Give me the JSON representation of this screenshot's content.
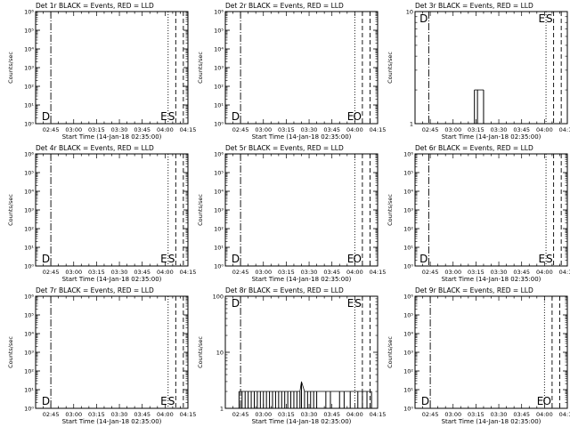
{
  "chart_data": [
    {
      "type": "line",
      "title": "Det 1r BLACK = Events, RED = LLD",
      "xlabel": "Start Time (14-Jan-18 02:35:00)",
      "ylabel": "Counts/sec",
      "scale_y": "log",
      "ylim": [
        1,
        1000000
      ],
      "y_ticks": [
        {
          "v": 1,
          "label": "10⁰"
        },
        {
          "v": 10,
          "label": "10¹"
        },
        {
          "v": 100,
          "label": "10²"
        },
        {
          "v": 1000,
          "label": "10³"
        },
        {
          "v": 10000,
          "label": "10⁴"
        },
        {
          "v": 100000,
          "label": "10⁵"
        },
        {
          "v": 1000000,
          "label": "10⁶"
        }
      ],
      "xlim": [
        "02:35",
        "04:15"
      ],
      "x_ticks": [
        "02:45",
        "03:00",
        "03:15",
        "03:30",
        "03:45",
        "04:00",
        "04:15"
      ],
      "markers": [
        {
          "time": "02:45",
          "style": "dashdot",
          "label": "D"
        },
        {
          "time": "04:02",
          "style": "dotted",
          "label": "E"
        },
        {
          "time": "04:07",
          "style": "dashed",
          "label": "S"
        },
        {
          "time": "04:12",
          "style": "dashed",
          "label": ""
        }
      ],
      "series": [
        {
          "values": []
        }
      ]
    },
    {
      "type": "line",
      "title": "Det 2r BLACK = Events, RED = LLD",
      "xlabel": "Start Time (14-Jan-18 02:35:00)",
      "ylabel": "Counts/sec",
      "scale_y": "log",
      "ylim": [
        1,
        1000000
      ],
      "y_ticks": [
        {
          "v": 1,
          "label": "10⁰"
        },
        {
          "v": 10,
          "label": "10¹"
        },
        {
          "v": 100,
          "label": "10²"
        },
        {
          "v": 1000,
          "label": "10³"
        },
        {
          "v": 10000,
          "label": "10⁴"
        },
        {
          "v": 100000,
          "label": "10⁵"
        },
        {
          "v": 1000000,
          "label": "10⁶"
        }
      ],
      "xlim": [
        "02:35",
        "04:15"
      ],
      "x_ticks": [
        "02:45",
        "03:00",
        "03:15",
        "03:30",
        "03:45",
        "04:00",
        "04:15"
      ],
      "markers": [
        {
          "time": "02:45",
          "style": "dashdot",
          "label": "D"
        },
        {
          "time": "04:00",
          "style": "dotted",
          "label": "E"
        },
        {
          "time": "04:05",
          "style": "dashed",
          "label": "O"
        },
        {
          "time": "04:10",
          "style": "dashed",
          "label": ""
        }
      ],
      "series": [
        {
          "values": []
        }
      ]
    },
    {
      "type": "line",
      "title": "Det 3r BLACK = Events, RED = LLD",
      "xlabel": "Start Time (14-Jan-18 02:35:00)",
      "ylabel": "Counts/sec",
      "scale_y": "log",
      "ylim": [
        1,
        10
      ],
      "y_ticks": [
        {
          "v": 1,
          "label": "1"
        },
        {
          "v": 10,
          "label": "10"
        }
      ],
      "xlim": [
        "02:35",
        "04:15"
      ],
      "x_ticks": [
        "02:45",
        "03:00",
        "03:15",
        "03:30",
        "03:45",
        "04:00",
        "04:15"
      ],
      "markers": [
        {
          "time": "02:44",
          "style": "dashdot",
          "label": "D"
        },
        {
          "time": "04:01",
          "style": "dotted",
          "label": "E"
        },
        {
          "time": "04:06",
          "style": "dashed",
          "label": "S"
        },
        {
          "time": "04:11",
          "style": "dashed",
          "label": ""
        }
      ],
      "series": [
        {
          "values": [
            {
              "t": "03:14",
              "y": 2
            },
            {
              "t": "03:16",
              "y": 2
            },
            {
              "t": "03:20",
              "y": 2
            }
          ]
        }
      ]
    },
    {
      "type": "line",
      "title": "Det 4r BLACK = Events, RED = LLD",
      "xlabel": "Start Time (14-Jan-18 02:35:00)",
      "ylabel": "Counts/sec",
      "scale_y": "log",
      "ylim": [
        1,
        1000000
      ],
      "y_ticks": [
        {
          "v": 1,
          "label": "10⁰"
        },
        {
          "v": 10,
          "label": "10¹"
        },
        {
          "v": 100,
          "label": "10²"
        },
        {
          "v": 1000,
          "label": "10³"
        },
        {
          "v": 10000,
          "label": "10⁴"
        },
        {
          "v": 100000,
          "label": "10⁵"
        },
        {
          "v": 1000000,
          "label": "10⁶"
        }
      ],
      "xlim": [
        "02:35",
        "04:15"
      ],
      "x_ticks": [
        "02:45",
        "03:00",
        "03:15",
        "03:30",
        "03:45",
        "04:00",
        "04:15"
      ],
      "markers": [
        {
          "time": "02:45",
          "style": "dashdot",
          "label": "D"
        },
        {
          "time": "04:02",
          "style": "dotted",
          "label": "E"
        },
        {
          "time": "04:07",
          "style": "dashed",
          "label": "S"
        },
        {
          "time": "04:12",
          "style": "dashed",
          "label": ""
        }
      ],
      "series": [
        {
          "values": []
        }
      ]
    },
    {
      "type": "line",
      "title": "Det 5r BLACK = Events, RED = LLD",
      "xlabel": "Start Time (14-Jan-18 02:35:00)",
      "ylabel": "Counts/sec",
      "scale_y": "log",
      "ylim": [
        1,
        1000000
      ],
      "y_ticks": [
        {
          "v": 1,
          "label": "10⁰"
        },
        {
          "v": 10,
          "label": "10¹"
        },
        {
          "v": 100,
          "label": "10²"
        },
        {
          "v": 1000,
          "label": "10³"
        },
        {
          "v": 10000,
          "label": "10⁴"
        },
        {
          "v": 100000,
          "label": "10⁵"
        },
        {
          "v": 1000000,
          "label": "10⁶"
        }
      ],
      "xlim": [
        "02:35",
        "04:15"
      ],
      "x_ticks": [
        "02:45",
        "03:00",
        "03:15",
        "03:30",
        "03:45",
        "04:00",
        "04:15"
      ],
      "markers": [
        {
          "time": "02:45",
          "style": "dashdot",
          "label": "D"
        },
        {
          "time": "04:00",
          "style": "dotted",
          "label": "E"
        },
        {
          "time": "04:05",
          "style": "dashed",
          "label": "O"
        },
        {
          "time": "04:10",
          "style": "dashed",
          "label": ""
        }
      ],
      "series": [
        {
          "values": []
        }
      ]
    },
    {
      "type": "line",
      "title": "Det 6r BLACK = Events, RED = LLD",
      "xlabel": "Start Time (14-Jan-18 02:35:00)",
      "ylabel": "Counts/sec",
      "scale_y": "log",
      "ylim": [
        1,
        1000000
      ],
      "y_ticks": [
        {
          "v": 1,
          "label": "10⁰"
        },
        {
          "v": 10,
          "label": "10¹"
        },
        {
          "v": 100,
          "label": "10²"
        },
        {
          "v": 1000,
          "label": "10³"
        },
        {
          "v": 10000,
          "label": "10⁴"
        },
        {
          "v": 100000,
          "label": "10⁵"
        },
        {
          "v": 1000000,
          "label": "10⁶"
        }
      ],
      "xlim": [
        "02:35",
        "04:15"
      ],
      "x_ticks": [
        "02:45",
        "03:00",
        "03:15",
        "03:30",
        "03:45",
        "04:00",
        "04:15"
      ],
      "markers": [
        {
          "time": "02:44",
          "style": "dashdot",
          "label": "D"
        },
        {
          "time": "04:01",
          "style": "dotted",
          "label": "E"
        },
        {
          "time": "04:06",
          "style": "dashed",
          "label": "S"
        },
        {
          "time": "04:11",
          "style": "dashed",
          "label": ""
        }
      ],
      "series": [
        {
          "values": []
        }
      ]
    },
    {
      "type": "line",
      "title": "Det 7r BLACK = Events, RED = LLD",
      "xlabel": "Start Time (14-Jan-18 02:35:00)",
      "ylabel": "Counts/sec",
      "scale_y": "log",
      "ylim": [
        1,
        1000000
      ],
      "y_ticks": [
        {
          "v": 1,
          "label": "10⁰"
        },
        {
          "v": 10,
          "label": "10¹"
        },
        {
          "v": 100,
          "label": "10²"
        },
        {
          "v": 1000,
          "label": "10³"
        },
        {
          "v": 10000,
          "label": "10⁴"
        },
        {
          "v": 100000,
          "label": "10⁵"
        },
        {
          "v": 1000000,
          "label": "10⁶"
        }
      ],
      "xlim": [
        "02:35",
        "04:15"
      ],
      "x_ticks": [
        "02:45",
        "03:00",
        "03:15",
        "03:30",
        "03:45",
        "04:00",
        "04:15"
      ],
      "markers": [
        {
          "time": "02:45",
          "style": "dashdot",
          "label": "D"
        },
        {
          "time": "04:02",
          "style": "dotted",
          "label": "E"
        },
        {
          "time": "04:07",
          "style": "dashed",
          "label": "S"
        },
        {
          "time": "04:12",
          "style": "dashed",
          "label": ""
        }
      ],
      "series": [
        {
          "values": []
        }
      ]
    },
    {
      "type": "line",
      "title": "Det 8r BLACK = Events, RED = LLD",
      "xlabel": "Start Time (14-Jan-18 02:35:00)",
      "ylabel": "Counts/sec",
      "scale_y": "log",
      "ylim": [
        1,
        100
      ],
      "y_ticks": [
        {
          "v": 1,
          "label": "1"
        },
        {
          "v": 10,
          "label": "10"
        },
        {
          "v": 100,
          "label": "100"
        }
      ],
      "xlim": [
        "02:35",
        "04:15"
      ],
      "x_ticks": [
        "02:45",
        "03:00",
        "03:15",
        "03:30",
        "03:45",
        "04:00",
        "04:15"
      ],
      "markers": [
        {
          "time": "02:45",
          "style": "dashdot",
          "label": "D"
        },
        {
          "time": "04:00",
          "style": "dotted",
          "label": "E"
        },
        {
          "time": "04:05",
          "style": "dashed",
          "label": "S"
        },
        {
          "time": "04:10",
          "style": "dashed",
          "label": ""
        }
      ],
      "series": [
        {
          "values": [
            {
              "t": "02:44",
              "y": 2
            },
            {
              "t": "02:46",
              "y": 2
            },
            {
              "t": "02:48",
              "y": 2
            },
            {
              "t": "02:50",
              "y": 2
            },
            {
              "t": "02:52",
              "y": 2
            },
            {
              "t": "02:54",
              "y": 2
            },
            {
              "t": "02:56",
              "y": 2
            },
            {
              "t": "02:58",
              "y": 2
            },
            {
              "t": "03:00",
              "y": 2
            },
            {
              "t": "03:02",
              "y": 2
            },
            {
              "t": "03:04",
              "y": 2
            },
            {
              "t": "03:06",
              "y": 2
            },
            {
              "t": "03:08",
              "y": 2
            },
            {
              "t": "03:10",
              "y": 2
            },
            {
              "t": "03:12",
              "y": 2
            },
            {
              "t": "03:14",
              "y": 2
            },
            {
              "t": "03:16",
              "y": 2
            },
            {
              "t": "03:18",
              "y": 2
            },
            {
              "t": "03:20",
              "y": 2
            },
            {
              "t": "03:22",
              "y": 2
            },
            {
              "t": "03:24",
              "y": 2
            },
            {
              "t": "03:25",
              "y": 3
            },
            {
              "t": "03:27",
              "y": 2
            },
            {
              "t": "03:29",
              "y": 2
            },
            {
              "t": "03:31",
              "y": 2
            },
            {
              "t": "03:33",
              "y": 2
            },
            {
              "t": "03:35",
              "y": 2
            },
            {
              "t": "03:41",
              "y": 2
            },
            {
              "t": "03:44",
              "y": 2
            },
            {
              "t": "03:50",
              "y": 2
            },
            {
              "t": "03:53",
              "y": 2
            },
            {
              "t": "03:57",
              "y": 2
            },
            {
              "t": "04:02",
              "y": 2
            },
            {
              "t": "04:05",
              "y": 2
            },
            {
              "t": "04:08",
              "y": 2
            },
            {
              "t": "04:11",
              "y": 2
            }
          ]
        }
      ]
    },
    {
      "type": "line",
      "title": "Det 9r BLACK = Events, RED = LLD",
      "xlabel": "Start Time (14-Jan-18 02:35:00)",
      "ylabel": "Counts/sec",
      "scale_y": "log",
      "ylim": [
        1,
        1000000
      ],
      "y_ticks": [
        {
          "v": 1,
          "label": "10⁰"
        },
        {
          "v": 10,
          "label": "10¹"
        },
        {
          "v": 100,
          "label": "10²"
        },
        {
          "v": 1000,
          "label": "10³"
        },
        {
          "v": 10000,
          "label": "10⁴"
        },
        {
          "v": 100000,
          "label": "10⁵"
        },
        {
          "v": 1000000,
          "label": "10⁶"
        }
      ],
      "xlim": [
        "02:35",
        "04:15"
      ],
      "x_ticks": [
        "02:45",
        "03:00",
        "03:15",
        "03:30",
        "03:45",
        "04:00",
        "04:15"
      ],
      "markers": [
        {
          "time": "02:45",
          "style": "dashdot",
          "label": "D"
        },
        {
          "time": "04:00",
          "style": "dotted",
          "label": "E"
        },
        {
          "time": "04:05",
          "style": "dashed",
          "label": "O"
        },
        {
          "time": "04:10",
          "style": "dashed",
          "label": ""
        }
      ],
      "series": [
        {
          "values": []
        }
      ]
    }
  ]
}
